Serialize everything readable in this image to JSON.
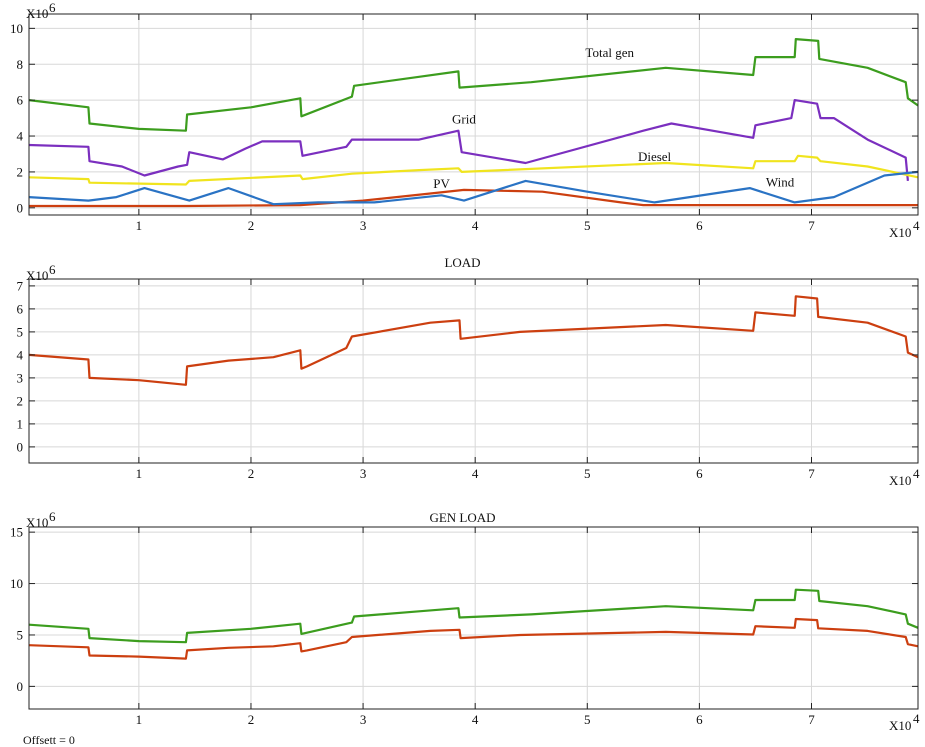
{
  "offset_text": "Offsett = 0",
  "chart_data": [
    {
      "type": "line",
      "title": "",
      "y_multiplier": "X10",
      "y_exponent": "6",
      "x_multiplier": "X10",
      "x_exponent": "4",
      "xlim": [
        0.02,
        7.95
      ],
      "ylim": [
        -0.4,
        10.8
      ],
      "xticks": [
        1,
        2,
        3,
        4,
        5,
        6,
        7
      ],
      "yticks": [
        0,
        2,
        4,
        6,
        8,
        10
      ],
      "grid": true,
      "series": [
        {
          "name": "Total gen",
          "color": "#3c9d1e",
          "label_at": [
            5.2,
            8.4
          ],
          "x": [
            0.02,
            0.55,
            0.56,
            1.0,
            1.42,
            1.43,
            2.0,
            2.44,
            2.45,
            2.9,
            2.92,
            3.5,
            3.85,
            3.86,
            4.5,
            5.7,
            6.48,
            6.5,
            6.85,
            6.86,
            7.06,
            7.07,
            7.5,
            7.84,
            7.86,
            7.95
          ],
          "y": [
            6.0,
            5.6,
            4.7,
            4.4,
            4.3,
            5.2,
            5.6,
            6.1,
            5.1,
            6.2,
            6.8,
            7.3,
            7.6,
            6.7,
            7.0,
            7.8,
            7.4,
            8.4,
            8.4,
            9.4,
            9.3,
            8.3,
            7.8,
            7.0,
            6.1,
            5.7
          ]
        },
        {
          "name": "Grid",
          "color": "#7b2fbf",
          "label_at": [
            3.9,
            4.7
          ],
          "x": [
            0.02,
            0.55,
            0.56,
            0.85,
            1.05,
            1.35,
            1.43,
            1.45,
            1.75,
            1.95,
            2.1,
            2.44,
            2.46,
            2.85,
            2.9,
            3.5,
            3.85,
            3.88,
            4.45,
            5.5,
            5.75,
            6.48,
            6.5,
            6.82,
            6.85,
            7.05,
            7.08,
            7.2,
            7.5,
            7.84,
            7.86
          ],
          "y": [
            3.5,
            3.4,
            2.6,
            2.3,
            1.8,
            2.3,
            2.4,
            3.1,
            2.7,
            3.3,
            3.7,
            3.7,
            2.9,
            3.4,
            3.8,
            3.8,
            4.3,
            3.1,
            2.5,
            4.3,
            4.7,
            3.9,
            4.6,
            5.0,
            6.0,
            5.8,
            5.0,
            5.0,
            3.8,
            2.8,
            1.5
          ]
        },
        {
          "name": "Diesel",
          "color": "#f0e41e",
          "label_at": [
            5.6,
            2.6
          ],
          "x": [
            0.02,
            0.55,
            0.56,
            1.42,
            1.45,
            2.44,
            2.46,
            2.9,
            3.5,
            3.85,
            3.88,
            5.7,
            6.48,
            6.5,
            6.85,
            6.88,
            7.05,
            7.08,
            7.5,
            7.95
          ],
          "y": [
            1.7,
            1.6,
            1.4,
            1.3,
            1.5,
            1.8,
            1.6,
            1.9,
            2.1,
            2.2,
            2.0,
            2.5,
            2.2,
            2.6,
            2.6,
            2.9,
            2.8,
            2.6,
            2.3,
            1.7
          ]
        },
        {
          "name": "PV",
          "color": "#cc3f10",
          "label_at": [
            3.7,
            1.1
          ],
          "x": [
            0.02,
            1.42,
            2.44,
            3.0,
            3.6,
            3.9,
            4.6,
            5.3,
            5.5,
            7.95
          ],
          "y": [
            0.1,
            0.1,
            0.15,
            0.4,
            0.8,
            1.0,
            0.9,
            0.3,
            0.15,
            0.15
          ]
        },
        {
          "name": "Wind",
          "color": "#2a73c4",
          "label_at": [
            6.72,
            1.2
          ],
          "x": [
            0.02,
            0.55,
            0.8,
            1.05,
            1.45,
            1.8,
            2.2,
            2.6,
            3.1,
            3.7,
            3.9,
            4.45,
            5.0,
            5.6,
            6.45,
            6.85,
            7.2,
            7.65,
            7.95
          ],
          "y": [
            0.6,
            0.4,
            0.6,
            1.1,
            0.4,
            1.1,
            0.2,
            0.3,
            0.3,
            0.7,
            0.4,
            1.5,
            0.9,
            0.3,
            1.1,
            0.3,
            0.6,
            1.8,
            2.0
          ]
        }
      ]
    },
    {
      "type": "line",
      "title": "LOAD",
      "y_multiplier": "X10",
      "y_exponent": "6",
      "x_multiplier": "X10",
      "x_exponent": "4",
      "xlim": [
        0.02,
        7.95
      ],
      "ylim": [
        -0.7,
        7.3
      ],
      "xticks": [
        1,
        2,
        3,
        4,
        5,
        6,
        7
      ],
      "yticks": [
        0,
        1,
        2,
        3,
        4,
        5,
        6,
        7
      ],
      "grid": true,
      "series": [
        {
          "name": "",
          "color": "#cc3f10",
          "x": [
            0.02,
            0.55,
            0.56,
            1.0,
            1.42,
            1.43,
            1.8,
            2.2,
            2.44,
            2.45,
            2.5,
            2.85,
            2.9,
            3.6,
            3.86,
            3.87,
            4.4,
            5.7,
            6.48,
            6.5,
            6.85,
            6.86,
            7.05,
            7.06,
            7.5,
            7.84,
            7.86,
            7.95
          ],
          "y": [
            4.0,
            3.8,
            3.0,
            2.9,
            2.7,
            3.5,
            3.75,
            3.9,
            4.2,
            3.4,
            3.5,
            4.3,
            4.8,
            5.4,
            5.5,
            4.7,
            5.0,
            5.3,
            5.05,
            5.85,
            5.7,
            6.55,
            6.45,
            5.65,
            5.4,
            4.8,
            4.1,
            3.9
          ]
        }
      ]
    },
    {
      "type": "line",
      "title": "GEN LOAD",
      "y_multiplier": "X10",
      "y_exponent": "6",
      "x_multiplier": "X10",
      "x_exponent": "4",
      "xlim": [
        0.02,
        7.95
      ],
      "ylim": [
        -2.2,
        15.5
      ],
      "xticks": [
        1,
        2,
        3,
        4,
        5,
        6,
        7
      ],
      "yticks": [
        0,
        5,
        10,
        15
      ],
      "grid": true,
      "series": [
        {
          "name": "",
          "color": "#3c9d1e",
          "x": [
            0.02,
            0.55,
            0.56,
            1.0,
            1.42,
            1.43,
            2.0,
            2.44,
            2.45,
            2.9,
            2.92,
            3.5,
            3.85,
            3.86,
            4.5,
            5.7,
            6.48,
            6.5,
            6.85,
            6.86,
            7.06,
            7.07,
            7.5,
            7.84,
            7.86,
            7.95
          ],
          "y": [
            6.0,
            5.6,
            4.7,
            4.4,
            4.3,
            5.2,
            5.6,
            6.1,
            5.1,
            6.2,
            6.8,
            7.3,
            7.6,
            6.7,
            7.0,
            7.8,
            7.4,
            8.4,
            8.4,
            9.4,
            9.3,
            8.3,
            7.8,
            7.0,
            6.1,
            5.7
          ]
        },
        {
          "name": "",
          "color": "#cc3f10",
          "x": [
            0.02,
            0.55,
            0.56,
            1.0,
            1.42,
            1.43,
            1.8,
            2.2,
            2.44,
            2.45,
            2.5,
            2.85,
            2.9,
            3.6,
            3.86,
            3.87,
            4.4,
            5.7,
            6.48,
            6.5,
            6.85,
            6.86,
            7.05,
            7.06,
            7.5,
            7.84,
            7.86,
            7.95
          ],
          "y": [
            4.0,
            3.8,
            3.0,
            2.9,
            2.7,
            3.5,
            3.75,
            3.9,
            4.2,
            3.4,
            3.5,
            4.3,
            4.8,
            5.4,
            5.5,
            4.7,
            5.0,
            5.3,
            5.05,
            5.85,
            5.7,
            6.55,
            6.45,
            5.65,
            5.4,
            4.8,
            4.1,
            3.9
          ]
        }
      ]
    }
  ]
}
